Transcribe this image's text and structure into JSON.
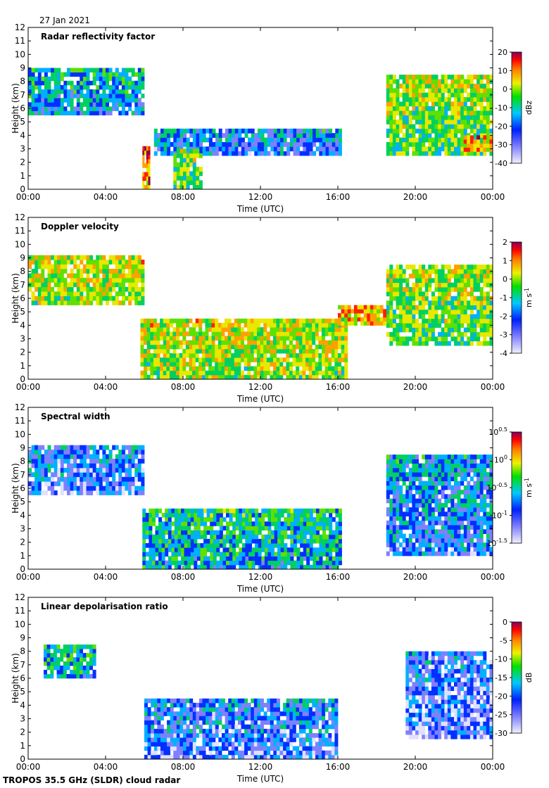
{
  "header": {
    "date": "27 Jan 2021"
  },
  "footer": {
    "instrument": "TROPOS 35.5 GHz (SLDR) cloud radar"
  },
  "chart_data": [
    {
      "type": "heatmap",
      "title": "Radar reflectivity factor",
      "xlabel": "Time (UTC)",
      "ylabel": "Height (km)",
      "xlim": [
        0,
        24
      ],
      "ylim": [
        0,
        12
      ],
      "xticks": [
        "00:00",
        "04:00",
        "08:00",
        "12:00",
        "16:00",
        "20:00",
        "00:00"
      ],
      "yticks": [
        "0",
        "1",
        "2",
        "3",
        "4",
        "5",
        "6",
        "7",
        "8",
        "9",
        "10",
        "11",
        "12"
      ],
      "colorbar": {
        "label": "dBz",
        "unit_sup": "",
        "ticks": [
          "20",
          "10",
          "0",
          "-10",
          "-20",
          "-30",
          "-40"
        ],
        "range": [
          -40,
          20
        ]
      },
      "layers": [
        {
          "t0": 0.0,
          "t1": 6.0,
          "h0": 5.5,
          "h1": 9.0,
          "level": 0.35
        },
        {
          "t0": 5.9,
          "t1": 6.3,
          "h0": 0.0,
          "h1": 3.2,
          "level": 0.8
        },
        {
          "t0": 6.5,
          "t1": 16.2,
          "h0": 2.5,
          "h1": 4.5,
          "level": 0.3
        },
        {
          "t0": 7.5,
          "t1": 9.0,
          "h0": 0.0,
          "h1": 3.0,
          "level": 0.55
        },
        {
          "t0": 18.5,
          "t1": 24.0,
          "h0": 2.5,
          "h1": 8.5,
          "level": 0.55
        },
        {
          "t0": 22.5,
          "t1": 24.0,
          "h0": 2.8,
          "h1": 4.0,
          "level": 0.75
        }
      ]
    },
    {
      "type": "heatmap",
      "title": "Doppler velocity",
      "xlabel": "Time (UTC)",
      "ylabel": "Height (km)",
      "xlim": [
        0,
        24
      ],
      "ylim": [
        0,
        12
      ],
      "xticks": [
        "00:00",
        "04:00",
        "08:00",
        "12:00",
        "16:00",
        "20:00",
        "00:00"
      ],
      "yticks": [
        "0",
        "1",
        "2",
        "3",
        "4",
        "5",
        "6",
        "7",
        "8",
        "9",
        "10",
        "11",
        "12"
      ],
      "colorbar": {
        "label": "m s",
        "unit_sup": "-1",
        "ticks": [
          "2",
          "1",
          "0",
          "-1",
          "-2",
          "-3",
          "-4"
        ],
        "range": [
          -4,
          2
        ]
      },
      "layers": [
        {
          "t0": 0.0,
          "t1": 6.0,
          "h0": 5.5,
          "h1": 9.2,
          "level": 0.6
        },
        {
          "t0": 5.8,
          "t1": 16.5,
          "h0": 0.0,
          "h1": 4.5,
          "level": 0.6
        },
        {
          "t0": 18.5,
          "t1": 24.0,
          "h0": 2.5,
          "h1": 8.5,
          "level": 0.55
        },
        {
          "t0": 16.0,
          "t1": 18.5,
          "h0": 4.0,
          "h1": 5.5,
          "level": 0.7
        }
      ]
    },
    {
      "type": "heatmap",
      "title": "Spectral width",
      "xlabel": "Time (UTC)",
      "ylabel": "Height (km)",
      "xlim": [
        0,
        24
      ],
      "ylim": [
        0,
        12
      ],
      "xticks": [
        "00:00",
        "04:00",
        "08:00",
        "12:00",
        "16:00",
        "20:00",
        "00:00"
      ],
      "yticks": [
        "0",
        "1",
        "2",
        "3",
        "4",
        "5",
        "6",
        "7",
        "8",
        "9",
        "10",
        "11",
        "12"
      ],
      "colorbar": {
        "label": "m s",
        "unit_sup": "-1",
        "ticks": [
          "10^0.5",
          "10^0",
          "10^-0.5",
          "10^-1",
          "10^-1.5"
        ],
        "range": [
          -1.5,
          0.5
        ]
      },
      "layers": [
        {
          "t0": 0.0,
          "t1": 6.0,
          "h0": 5.5,
          "h1": 9.2,
          "level": 0.25
        },
        {
          "t0": 5.9,
          "t1": 16.2,
          "h0": 0.0,
          "h1": 4.5,
          "level": 0.4
        },
        {
          "t0": 18.5,
          "t1": 24.0,
          "h0": 1.0,
          "h1": 8.5,
          "level": 0.3
        }
      ]
    },
    {
      "type": "heatmap",
      "title": "Linear depolarisation ratio",
      "xlabel": "Time (UTC)",
      "ylabel": "Height (km)",
      "xlim": [
        0,
        24
      ],
      "ylim": [
        0,
        12
      ],
      "xticks": [
        "00:00",
        "04:00",
        "08:00",
        "12:00",
        "16:00",
        "20:00",
        "00:00"
      ],
      "yticks": [
        "0",
        "1",
        "2",
        "3",
        "4",
        "5",
        "6",
        "7",
        "8",
        "9",
        "10",
        "11",
        "12"
      ],
      "colorbar": {
        "label": "dB",
        "unit_sup": "",
        "ticks": [
          "0",
          "-5",
          "-10",
          "-15",
          "-20",
          "-25",
          "-30"
        ],
        "range": [
          -30,
          0
        ]
      },
      "layers": [
        {
          "t0": 6.0,
          "t1": 16.0,
          "h0": 0.0,
          "h1": 4.5,
          "level": 0.25
        },
        {
          "t0": 19.5,
          "t1": 24.0,
          "h0": 1.5,
          "h1": 8.0,
          "level": 0.22
        },
        {
          "t0": 0.8,
          "t1": 3.5,
          "h0": 6.0,
          "h1": 8.5,
          "level": 0.4
        }
      ]
    }
  ]
}
